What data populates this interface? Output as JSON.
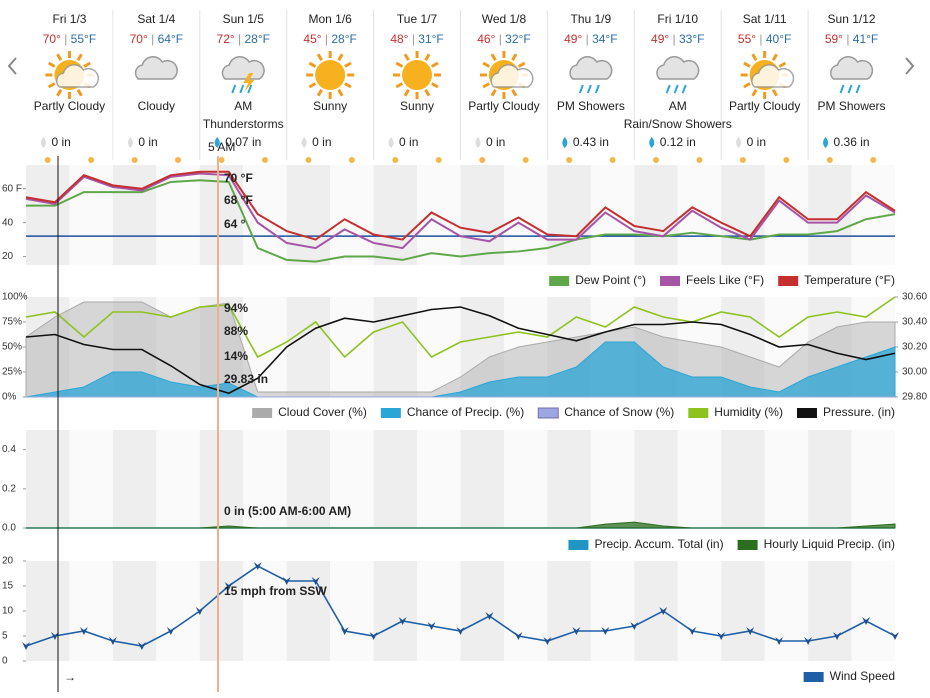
{
  "days": [
    {
      "day": "Fri 1/3",
      "high": "70°",
      "low": "55°F",
      "condition": "Partly Cloudy",
      "precip": "0 in"
    },
    {
      "day": "Sat 1/4",
      "high": "70°",
      "low": "64°F",
      "condition": "Cloudy",
      "precip": "0 in"
    },
    {
      "day": "Sun 1/5",
      "high": "72°",
      "low": "28°F",
      "condition": "AM Thunderstorms",
      "precip": "0.07 in"
    },
    {
      "day": "Mon 1/6",
      "high": "45°",
      "low": "28°F",
      "condition": "Sunny",
      "precip": "0 in"
    },
    {
      "day": "Tue 1/7",
      "high": "48°",
      "low": "31°F",
      "condition": "Sunny",
      "precip": "0 in"
    },
    {
      "day": "Wed 1/8",
      "high": "46°",
      "low": "32°F",
      "condition": "Partly Cloudy",
      "precip": "0 in"
    },
    {
      "day": "Thu 1/9",
      "high": "49°",
      "low": "34°F",
      "condition": "PM Showers",
      "precip": "0.43 in"
    },
    {
      "day": "Fri 1/10",
      "high": "49°",
      "low": "33°F",
      "condition": "AM Rain/Snow Showers",
      "precip": "0.12 in"
    },
    {
      "day": "Sat 1/11",
      "high": "55°",
      "low": "40°F",
      "condition": "Partly Cloudy",
      "precip": "0 in"
    },
    {
      "day": "Sun 1/12",
      "high": "59°",
      "low": "41°F",
      "condition": "PM Showers",
      "precip": "0.36 in"
    }
  ],
  "cursor_label": "5 AM",
  "arrow": "→",
  "chart_data": [
    {
      "type": "line",
      "ylim": [
        15,
        74
      ],
      "yticks": [
        {
          "value": 20,
          "label": "20"
        },
        {
          "value": 40,
          "label": "40"
        },
        {
          "value": 60,
          "label": "60 F"
        }
      ],
      "reference_line": 32,
      "annotations": [
        "70 °F",
        "68 °F",
        "64 °"
      ],
      "series": [
        {
          "name": "Dew Point (°)",
          "color": "#5fa84a",
          "values": [
            50,
            50,
            58,
            58,
            58,
            64,
            65,
            64,
            25,
            18,
            17,
            20,
            20,
            18,
            22,
            20,
            22,
            23,
            25,
            30,
            33,
            33,
            32,
            34,
            32,
            30,
            33,
            33,
            35,
            42,
            45
          ]
        },
        {
          "name": "Feels Like (°F)",
          "color": "#a654a6",
          "values": [
            54,
            51,
            67,
            61,
            59,
            67,
            69,
            68,
            40,
            28,
            25,
            36,
            28,
            25,
            42,
            32,
            29,
            40,
            30,
            30,
            46,
            35,
            32,
            47,
            37,
            30,
            53,
            40,
            40,
            56,
            46
          ]
        },
        {
          "name": "Temperature (°F)",
          "color": "#c62f2f",
          "values": [
            55,
            52,
            68,
            62,
            60,
            68,
            70,
            70,
            45,
            35,
            30,
            42,
            33,
            30,
            46,
            37,
            34,
            43,
            33,
            32,
            49,
            38,
            35,
            49,
            40,
            32,
            55,
            42,
            42,
            58,
            47
          ]
        }
      ]
    },
    {
      "type": "mixed",
      "ylim": [
        0,
        100
      ],
      "yticks": [
        {
          "value": 0,
          "label": "0%"
        },
        {
          "value": 25,
          "label": "25%"
        },
        {
          "value": 50,
          "label": "50%"
        },
        {
          "value": 75,
          "label": "75%"
        },
        {
          "value": 100,
          "label": "100%"
        }
      ],
      "y2lim": [
        29.8,
        30.6
      ],
      "y2ticks": [
        {
          "value": 29.8,
          "label": "29.80"
        },
        {
          "value": 30,
          "label": "30.00"
        },
        {
          "value": 30.2,
          "label": "30.20"
        },
        {
          "value": 30.4,
          "label": "30.40"
        },
        {
          "value": 30.6,
          "label": "30.60"
        }
      ],
      "annotations": [
        "94%",
        "88%",
        "14%",
        "29.83 in"
      ],
      "series": [
        {
          "name": "Cloud Cover (%)",
          "color": "#aaaaaa",
          "kind": "area",
          "values": [
            60,
            80,
            95,
            95,
            95,
            80,
            90,
            94,
            5,
            5,
            5,
            5,
            5,
            5,
            5,
            20,
            40,
            50,
            55,
            60,
            65,
            70,
            60,
            55,
            50,
            40,
            30,
            55,
            70,
            75,
            75
          ]
        },
        {
          "name": "Chance of Precip. (%)",
          "color": "#2aa6d6",
          "kind": "area",
          "values": [
            0,
            5,
            10,
            25,
            25,
            15,
            10,
            14,
            0,
            0,
            0,
            0,
            0,
            0,
            0,
            5,
            15,
            20,
            20,
            30,
            55,
            55,
            30,
            20,
            20,
            10,
            5,
            20,
            30,
            40,
            50
          ]
        },
        {
          "name": "Chance of Snow (%)",
          "color": "#9aa7e0",
          "kind": "area",
          "values": [
            0,
            0,
            0,
            0,
            0,
            0,
            0,
            0,
            0,
            0,
            0,
            0,
            0,
            0,
            0,
            0,
            0,
            0,
            0,
            0,
            0,
            0,
            0,
            0,
            0,
            0,
            0,
            0,
            0,
            0,
            0
          ]
        },
        {
          "name": "Humidity (%)",
          "color": "#8dc21f",
          "kind": "line",
          "values": [
            80,
            85,
            60,
            85,
            85,
            80,
            90,
            92,
            40,
            55,
            75,
            40,
            65,
            75,
            40,
            55,
            60,
            65,
            60,
            80,
            70,
            90,
            80,
            75,
            85,
            80,
            60,
            80,
            85,
            80,
            100
          ]
        },
        {
          "name": "Pressure. (in)",
          "color": "#111111",
          "kind": "line",
          "axis": "y2",
          "values": [
            30.28,
            30.3,
            30.22,
            30.18,
            30.18,
            30.05,
            29.9,
            29.83,
            29.95,
            30.2,
            30.35,
            30.43,
            30.4,
            30.45,
            30.5,
            30.52,
            30.45,
            30.35,
            30.3,
            30.25,
            30.32,
            30.38,
            30.38,
            30.4,
            30.38,
            30.3,
            30.2,
            30.22,
            30.15,
            30.1,
            30.15
          ]
        }
      ]
    },
    {
      "type": "area",
      "ylim": [
        0,
        0.5
      ],
      "yticks": [
        {
          "value": 0,
          "label": "0.0"
        },
        {
          "value": 0.2,
          "label": "0.2"
        },
        {
          "value": 0.4,
          "label": "0.4"
        }
      ],
      "annotations": [
        "0 in (5:00 AM-6:00 AM)"
      ],
      "series": [
        {
          "name": "Precip. Accum. Total (in)",
          "color": "#2196c4",
          "kind": "line",
          "values": [
            0,
            0,
            0,
            0,
            0,
            0,
            0,
            0,
            0,
            0,
            0,
            0,
            0,
            0,
            0,
            0,
            0,
            0,
            0,
            0,
            0,
            0,
            0,
            0,
            0,
            0,
            0,
            0,
            0,
            0,
            0
          ]
        },
        {
          "name": "Hourly Liquid Precip. (in)",
          "color": "#2a6e1e",
          "kind": "area",
          "values": [
            0,
            0,
            0,
            0,
            0,
            0,
            0,
            0.01,
            0,
            0,
            0,
            0,
            0,
            0,
            0,
            0,
            0,
            0,
            0,
            0,
            0.02,
            0.03,
            0.01,
            0,
            0,
            0,
            0,
            0,
            0,
            0.01,
            0.02
          ]
        }
      ]
    },
    {
      "type": "line",
      "ylim": [
        0,
        20
      ],
      "yticks": [
        0,
        5,
        10,
        15,
        20
      ],
      "annotations": [
        "15 mph from SSW"
      ],
      "series": [
        {
          "name": "Wind Speed",
          "color": "#1e5fa8",
          "kind": "line",
          "values": [
            3,
            5,
            6,
            4,
            3,
            6,
            10,
            15,
            19,
            16,
            16,
            6,
            5,
            8,
            7,
            6,
            9,
            5,
            4,
            6,
            6,
            7,
            10,
            6,
            5,
            6,
            4,
            4,
            5,
            8,
            5
          ]
        }
      ]
    }
  ]
}
